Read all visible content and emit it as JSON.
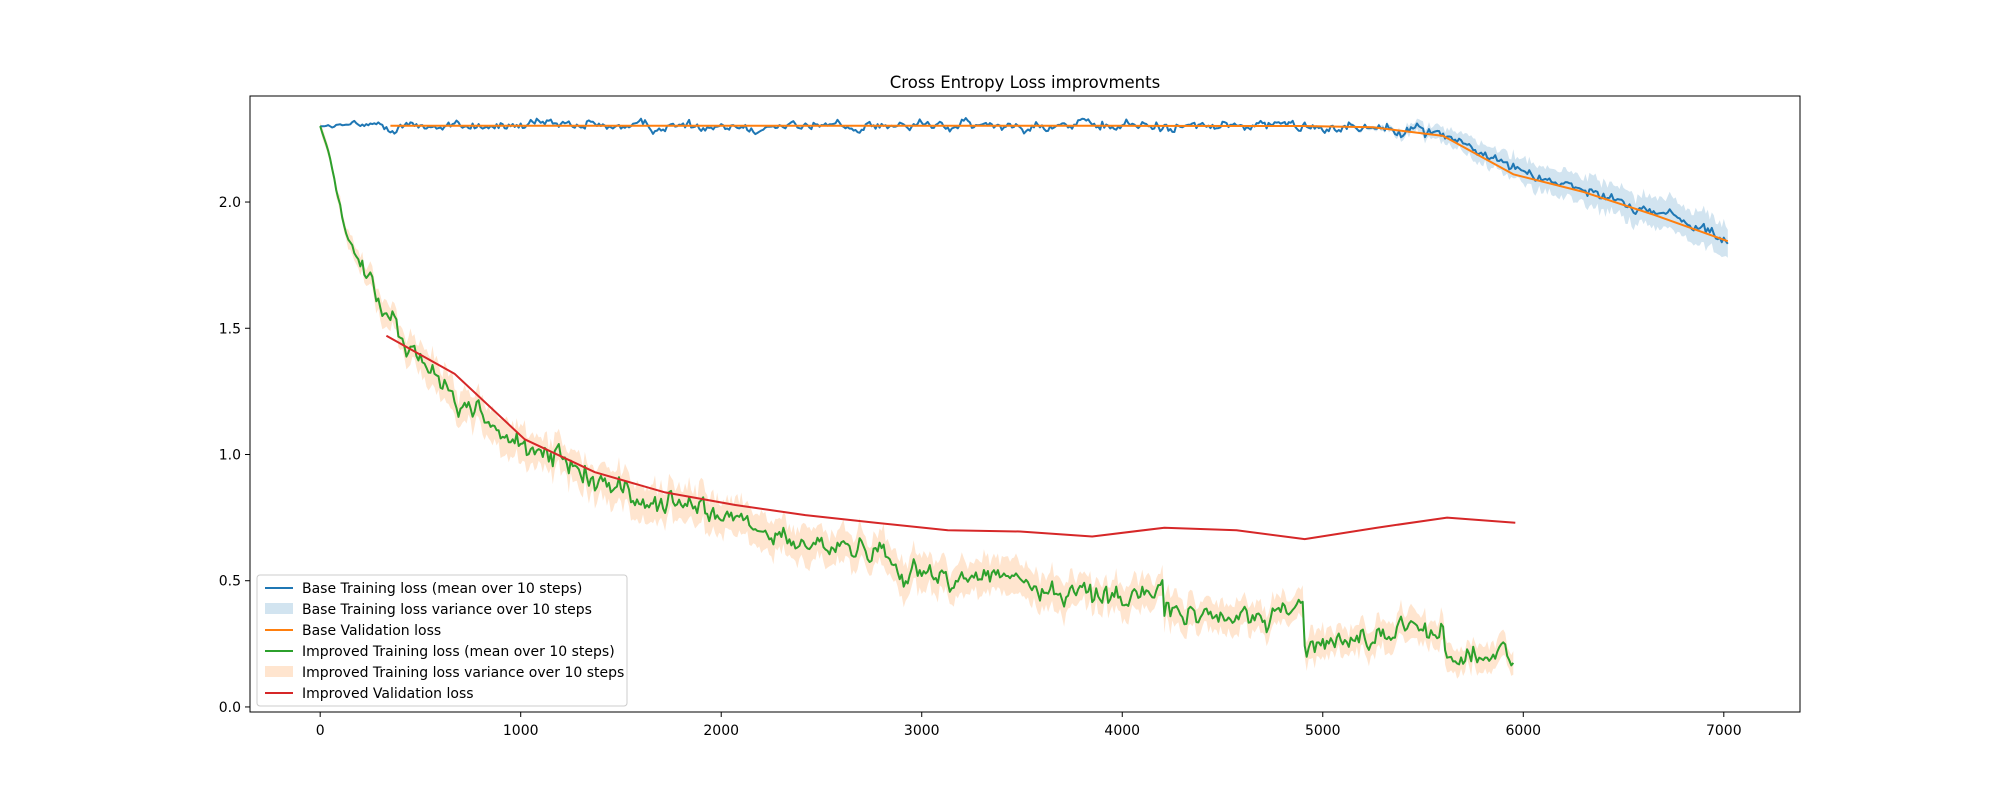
{
  "chart_data": {
    "type": "line",
    "title": "Cross Entropy Loss improvments",
    "xlabel": "",
    "ylabel": "",
    "xlim": [
      -350,
      7380
    ],
    "ylim": [
      -0.02,
      2.42
    ],
    "x_ticks": [
      0,
      1000,
      2000,
      3000,
      4000,
      5000,
      6000,
      7000
    ],
    "y_ticks": [
      0.0,
      0.5,
      1.0,
      1.5,
      2.0
    ],
    "y_tick_labels": [
      "0.0",
      "0.5",
      "1.0",
      "1.5",
      "2.0"
    ],
    "grid": false,
    "legend_position": "lower-left",
    "legend": [
      {
        "label": "Base Training loss (mean over 10 steps)",
        "kind": "line",
        "color": "#1f77b4"
      },
      {
        "label": "Base Training loss variance over 10 steps",
        "kind": "patch",
        "color": "#1f77b4"
      },
      {
        "label": "Base Validation loss",
        "kind": "line",
        "color": "#ff7f0e"
      },
      {
        "label": "Improved Training loss (mean over 10 steps)",
        "kind": "line",
        "color": "#2ca02c"
      },
      {
        "label": "Improved Training loss variance over 10 steps",
        "kind": "patch",
        "color": "#ff7f0e"
      },
      {
        "label": "Improved Validation loss",
        "kind": "line",
        "color": "#d62728"
      }
    ],
    "series": [
      {
        "name": "Base Training loss (mean over 10 steps)",
        "color": "#1f77b4",
        "kind": "noisy-mean",
        "step": 10,
        "noise": 0.022,
        "band_halfwidth_keypoints": {
          "x": [
            0,
            5000,
            5300,
            5600,
            6000,
            7020
          ],
          "y": [
            0.002,
            0.002,
            0.01,
            0.03,
            0.05,
            0.06
          ]
        },
        "keypoints": {
          "x": [
            0,
            500,
            1000,
            2000,
            3000,
            4000,
            5000,
            5300,
            5450,
            5600,
            5800,
            6000,
            6300,
            6600,
            6900,
            7020
          ],
          "y": [
            2.302,
            2.302,
            2.302,
            2.302,
            2.302,
            2.302,
            2.301,
            2.298,
            2.29,
            2.27,
            2.19,
            2.12,
            2.05,
            1.98,
            1.9,
            1.84
          ]
        }
      },
      {
        "name": "Base Validation loss",
        "color": "#ff7f0e",
        "kind": "line",
        "x": [
          350,
          1000,
          2000,
          3000,
          4000,
          4900,
          5250,
          5600,
          5950,
          6300,
          6650,
          7020
        ],
        "y": [
          2.302,
          2.302,
          2.302,
          2.302,
          2.302,
          2.301,
          2.296,
          2.262,
          2.11,
          2.04,
          1.95,
          1.845
        ]
      },
      {
        "name": "Improved Training loss (mean over 10 steps)",
        "color": "#2ca02c",
        "kind": "noisy-mean",
        "step": 10,
        "noise": 0.045,
        "band_color": "#ff7f0e",
        "band_halfwidth_keypoints": {
          "x": [
            0,
            500,
            2000,
            4000,
            5950
          ],
          "y": [
            0.02,
            0.06,
            0.07,
            0.06,
            0.05
          ]
        },
        "keypoints": {
          "x": [
            0,
            40,
            80,
            130,
            200,
            300,
            400,
            500,
            700,
            900,
            1000,
            1200,
            1400,
            1600,
            1800,
            2000,
            2200,
            2400,
            2600,
            2800,
            2900,
            3000,
            3200,
            3400,
            3500,
            3600,
            3800,
            4000,
            4200,
            4210,
            4230,
            4400,
            4600,
            4800,
            4900,
            4910,
            4930,
            5100,
            5300,
            5500,
            5600,
            5610,
            5630,
            5800,
            5950
          ],
          "y": [
            2.3,
            2.2,
            2.05,
            1.88,
            1.74,
            1.6,
            1.47,
            1.36,
            1.21,
            1.09,
            1.03,
            0.97,
            0.9,
            0.82,
            0.8,
            0.76,
            0.68,
            0.64,
            0.63,
            0.61,
            0.56,
            0.53,
            0.51,
            0.53,
            0.51,
            0.45,
            0.45,
            0.45,
            0.47,
            0.33,
            0.37,
            0.36,
            0.35,
            0.38,
            0.39,
            0.26,
            0.24,
            0.27,
            0.29,
            0.31,
            0.31,
            0.18,
            0.2,
            0.2,
            0.21
          ]
        }
      },
      {
        "name": "Improved Validation loss",
        "color": "#d62728",
        "kind": "line",
        "x": [
          330,
          670,
          1020,
          1370,
          1720,
          2070,
          2420,
          2770,
          3130,
          3490,
          3850,
          4210,
          4570,
          4910,
          5270,
          5620,
          5960
        ],
        "y": [
          1.47,
          1.32,
          1.06,
          0.93,
          0.85,
          0.8,
          0.76,
          0.73,
          0.7,
          0.695,
          0.675,
          0.71,
          0.7,
          0.665,
          0.71,
          0.75,
          0.73
        ]
      }
    ]
  }
}
